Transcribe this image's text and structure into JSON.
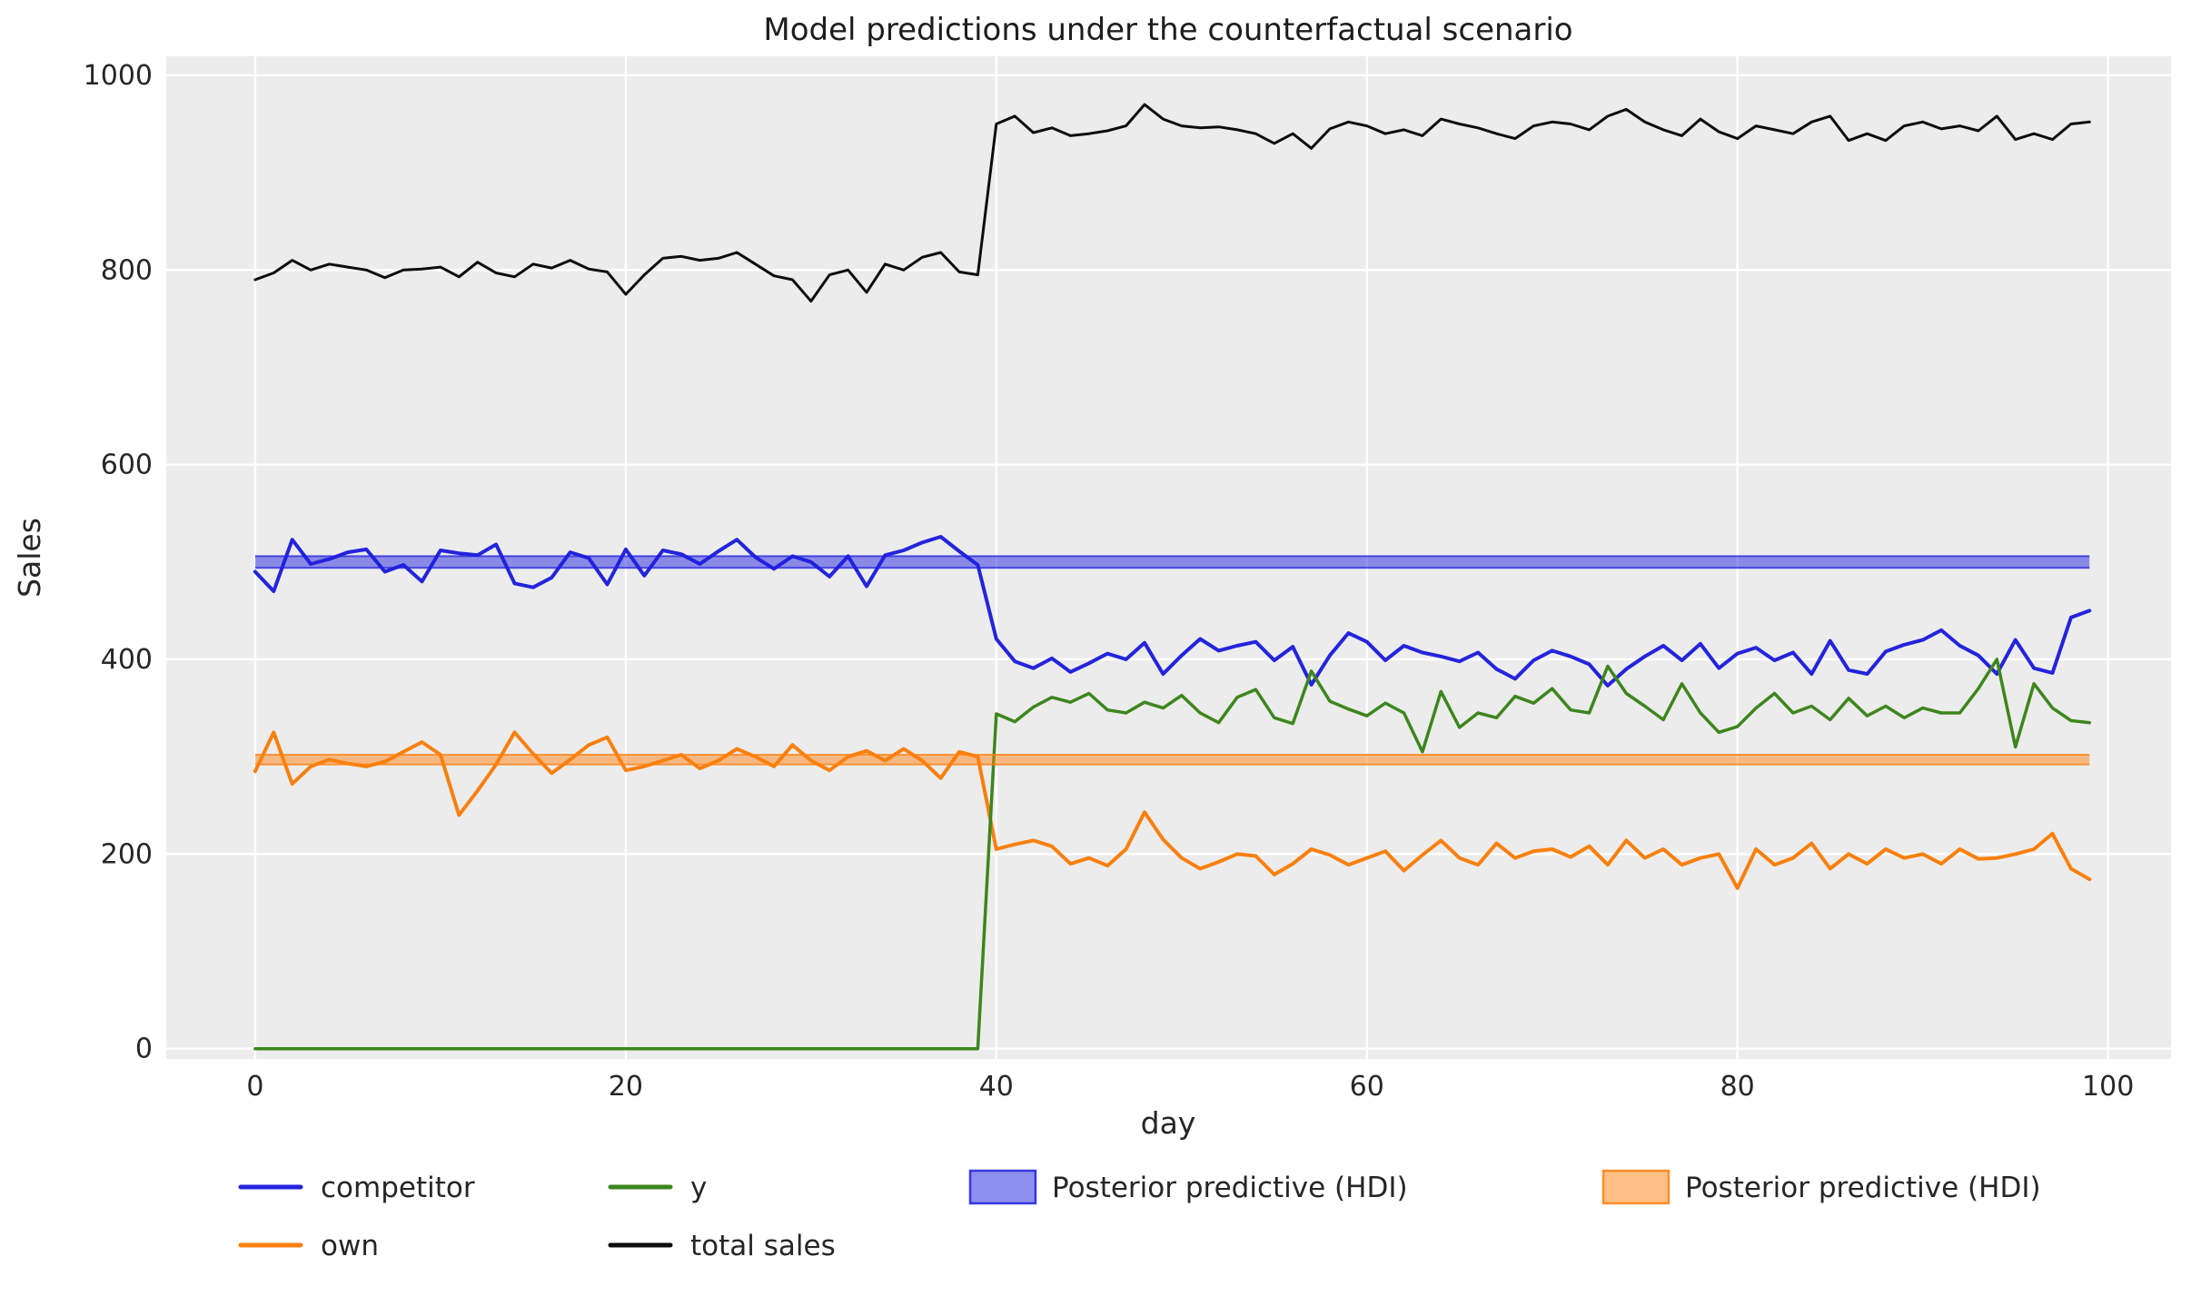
{
  "title": "Model predictions under the counterfactual scenario",
  "colors": {
    "figure_bg": "#ffffff",
    "axes_bg": "#ececec",
    "grid": "#ffffff",
    "text": "#262626",
    "competitor_blue": "#2424dc",
    "own_orange": "#f8800e",
    "y_green": "#3d861d",
    "total_black": "#0d0d0d",
    "hdi_blue": "#1f1fe0",
    "hdi_orange": "#ff7f0e"
  },
  "chart_data": {
    "type": "line",
    "title": "Model predictions under the counterfactual scenario",
    "xlabel": "day",
    "ylabel": "Sales",
    "xlim": [
      -4.8,
      103.4
    ],
    "ylim": [
      -10.5,
      1019.5
    ],
    "xticks": [
      0,
      20,
      40,
      60,
      80,
      100
    ],
    "yticks": [
      0,
      200,
      400,
      600,
      800,
      1000
    ],
    "grid": true,
    "legend_position": "below",
    "x": [
      0,
      1,
      2,
      3,
      4,
      5,
      6,
      7,
      8,
      9,
      10,
      11,
      12,
      13,
      14,
      15,
      16,
      17,
      18,
      19,
      20,
      21,
      22,
      23,
      24,
      25,
      26,
      27,
      28,
      29,
      30,
      31,
      32,
      33,
      34,
      35,
      36,
      37,
      38,
      39,
      40,
      41,
      42,
      43,
      44,
      45,
      46,
      47,
      48,
      49,
      50,
      51,
      52,
      53,
      54,
      55,
      56,
      57,
      58,
      59,
      60,
      61,
      62,
      63,
      64,
      65,
      66,
      67,
      68,
      69,
      70,
      71,
      72,
      73,
      74,
      75,
      76,
      77,
      78,
      79,
      80,
      81,
      82,
      83,
      84,
      85,
      86,
      87,
      88,
      89,
      90,
      91,
      92,
      93,
      94,
      95,
      96,
      97,
      98,
      99
    ],
    "series": [
      {
        "name": "competitor",
        "color": "#2424dc",
        "width": 4,
        "values": [
          490,
          470,
          523,
          498,
          503,
          510,
          513,
          490,
          497,
          480,
          512,
          509,
          507,
          518,
          478,
          474,
          484,
          510,
          504,
          477,
          513,
          486,
          512,
          508,
          498,
          511,
          523,
          505,
          493,
          506,
          500,
          485,
          506,
          475,
          507,
          512,
          520,
          526,
          511,
          497,
          421,
          398,
          391,
          401,
          387,
          396,
          406,
          400,
          417,
          385,
          404,
          421,
          409,
          414,
          418,
          399,
          413,
          374,
          404,
          427,
          418,
          399,
          414,
          407,
          403,
          398,
          407,
          390,
          380,
          399,
          409,
          403,
          395,
          373,
          390,
          403,
          414,
          399,
          416,
          391,
          406,
          412,
          399,
          407,
          385,
          419,
          389,
          385,
          408,
          415,
          420,
          430,
          414,
          404,
          385,
          420,
          391,
          386,
          443,
          450
        ]
      },
      {
        "name": "own",
        "color": "#f8800e",
        "width": 4,
        "values": [
          285,
          325,
          272,
          290,
          297,
          293,
          290,
          295,
          305,
          315,
          302,
          240,
          265,
          292,
          325,
          303,
          283,
          297,
          312,
          320,
          286,
          290,
          296,
          302,
          288,
          296,
          308,
          300,
          290,
          312,
          296,
          286,
          300,
          306,
          296,
          308,
          296,
          278,
          305,
          300,
          205,
          210,
          214,
          208,
          190,
          196,
          188,
          205,
          243,
          215,
          196,
          185,
          192,
          200,
          198,
          179,
          190,
          205,
          199,
          189,
          196,
          203,
          183,
          199,
          214,
          196,
          189,
          211,
          196,
          203,
          205,
          197,
          208,
          189,
          214,
          196,
          205,
          189,
          196,
          200,
          165,
          205,
          189,
          196,
          211,
          185,
          200,
          190,
          205,
          196,
          200,
          190,
          205,
          195,
          196,
          200,
          205,
          221,
          185,
          174
        ]
      },
      {
        "name": "y",
        "color": "#3d861d",
        "width": 3.5,
        "values": [
          0,
          0,
          0,
          0,
          0,
          0,
          0,
          0,
          0,
          0,
          0,
          0,
          0,
          0,
          0,
          0,
          0,
          0,
          0,
          0,
          0,
          0,
          0,
          0,
          0,
          0,
          0,
          0,
          0,
          0,
          0,
          0,
          0,
          0,
          0,
          0,
          0,
          0,
          0,
          0,
          344,
          336,
          351,
          361,
          356,
          365,
          348,
          345,
          356,
          350,
          363,
          345,
          335,
          361,
          369,
          340,
          334,
          388,
          357,
          349,
          342,
          355,
          345,
          305,
          367,
          330,
          345,
          340,
          362,
          355,
          370,
          348,
          345,
          393,
          365,
          352,
          338,
          375,
          345,
          325,
          331,
          350,
          365,
          345,
          352,
          338,
          360,
          342,
          352,
          340,
          350,
          345,
          345,
          370,
          400,
          310,
          375,
          350,
          337,
          335
        ]
      },
      {
        "name": "total sales",
        "color": "#0d0d0d",
        "width": 3,
        "values": [
          790,
          797,
          810,
          800,
          806,
          803,
          800,
          792,
          800,
          801,
          803,
          793,
          808,
          797,
          793,
          806,
          802,
          810,
          801,
          798,
          775,
          795,
          812,
          814,
          810,
          812,
          818,
          806,
          794,
          790,
          768,
          795,
          800,
          777,
          806,
          800,
          813,
          818,
          798,
          795,
          950,
          958,
          941,
          946,
          938,
          940,
          943,
          948,
          970,
          955,
          948,
          946,
          947,
          944,
          940,
          930,
          940,
          925,
          945,
          952,
          948,
          940,
          944,
          938,
          955,
          950,
          946,
          940,
          935,
          948,
          952,
          950,
          944,
          958,
          965,
          952,
          944,
          938,
          955,
          942,
          935,
          948,
          944,
          940,
          952,
          958,
          933,
          940,
          933,
          948,
          952,
          945,
          948,
          943,
          958,
          934,
          940,
          934,
          950,
          952
        ]
      }
    ],
    "bands": [
      {
        "name": "Posterior predictive (HDI)",
        "color": "#1f1fe0",
        "lo": 494,
        "hi": 506,
        "x0": 0,
        "x1": 99
      },
      {
        "name": "Posterior predictive (HDI)",
        "color": "#ff7f0e",
        "lo": 292,
        "hi": 302,
        "x0": 0,
        "x1": 99
      }
    ]
  },
  "legend": {
    "items": [
      {
        "type": "line",
        "color": "#2424dc",
        "label": "competitor"
      },
      {
        "type": "line",
        "color": "#f8800e",
        "label": "own"
      },
      {
        "type": "line",
        "color": "#3d861d",
        "label": "y"
      },
      {
        "type": "line",
        "color": "#0d0d0d",
        "label": "total sales"
      },
      {
        "type": "patch",
        "color": "#1f1fe0",
        "label": "Posterior predictive (HDI)"
      },
      {
        "type": "patch",
        "color": "#ff7f0e",
        "label": "Posterior predictive (HDI)"
      }
    ]
  }
}
